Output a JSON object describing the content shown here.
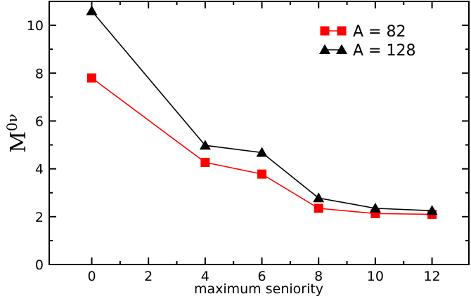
{
  "chart_data": {
    "type": "line",
    "title": "",
    "xlabel": "maximum seniority",
    "ylabel": "M",
    "ylabel_superscript": "0ν",
    "xlim": [
      -1.5,
      13.3
    ],
    "ylim": [
      0,
      11
    ],
    "xticks": [
      0,
      2,
      4,
      6,
      8,
      10,
      12
    ],
    "yticks": [
      0,
      2,
      4,
      6,
      8,
      10
    ],
    "grid": false,
    "legend_position": "top-right",
    "series": [
      {
        "name": "A = 82",
        "color": "#ff0000",
        "marker": "square",
        "x": [
          0,
          4,
          6,
          8,
          10,
          12
        ],
        "y": [
          7.8,
          4.27,
          3.78,
          2.35,
          2.13,
          2.1
        ]
      },
      {
        "name": "A = 128",
        "color": "#000000",
        "marker": "triangle",
        "x": [
          0,
          4,
          6,
          8,
          10,
          12
        ],
        "y": [
          10.6,
          4.98,
          4.68,
          2.78,
          2.35,
          2.25
        ]
      }
    ]
  }
}
